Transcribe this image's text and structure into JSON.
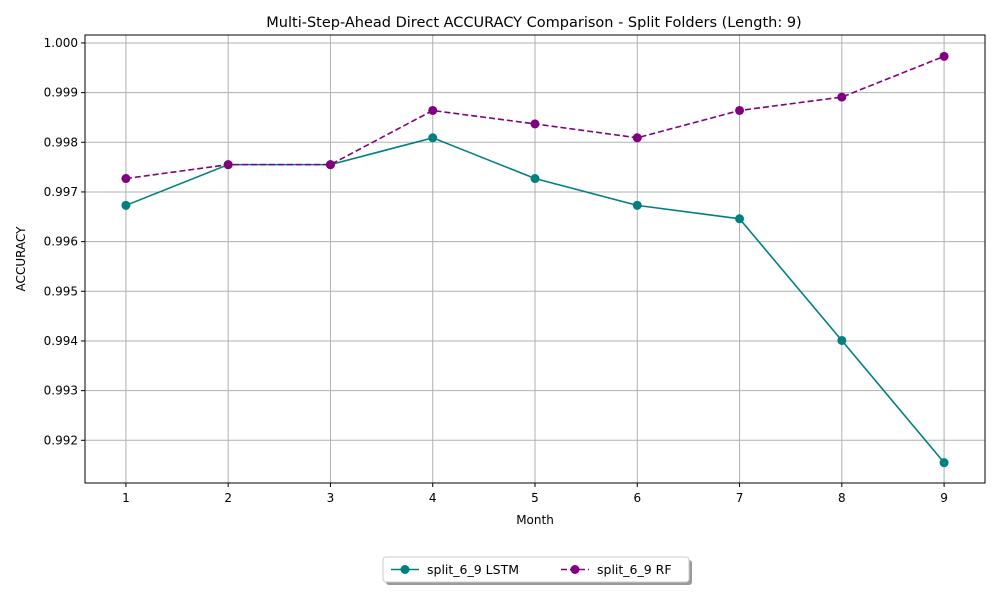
{
  "chart_data": {
    "type": "line",
    "title": "Multi-Step-Ahead Direct ACCURACY Comparison - Split Folders (Length: 9)",
    "xlabel": "Month",
    "ylabel": "ACCURACY",
    "x": [
      1,
      2,
      3,
      4,
      5,
      6,
      7,
      8,
      9
    ],
    "xlim": [
      0.6,
      9.4
    ],
    "ylim": [
      0.99114,
      1.00016
    ],
    "yticks": [
      0.992,
      0.993,
      0.994,
      0.995,
      0.996,
      0.997,
      0.998,
      0.999,
      1.0
    ],
    "ytick_labels": [
      "0.992",
      "0.993",
      "0.994",
      "0.995",
      "0.996",
      "0.997",
      "0.998",
      "0.999",
      "1.000"
    ],
    "xtick_labels": [
      "1",
      "2",
      "3",
      "4",
      "5",
      "6",
      "7",
      "8",
      "9"
    ],
    "grid": true,
    "legend_position": "bottom-center outside",
    "series": [
      {
        "name": "split_6_9 LSTM",
        "color": "#008080",
        "linestyle": "solid",
        "marker": "circle",
        "values": [
          0.99673,
          0.99755,
          0.99755,
          0.99809,
          0.99727,
          0.99673,
          0.99646,
          0.99401,
          0.99155
        ]
      },
      {
        "name": "split_6_9 RF",
        "color": "#800080",
        "linestyle": "dashed",
        "marker": "circle",
        "values": [
          0.99727,
          0.99755,
          0.99755,
          0.99864,
          0.99837,
          0.99809,
          0.99864,
          0.99891,
          0.99973
        ]
      }
    ]
  }
}
